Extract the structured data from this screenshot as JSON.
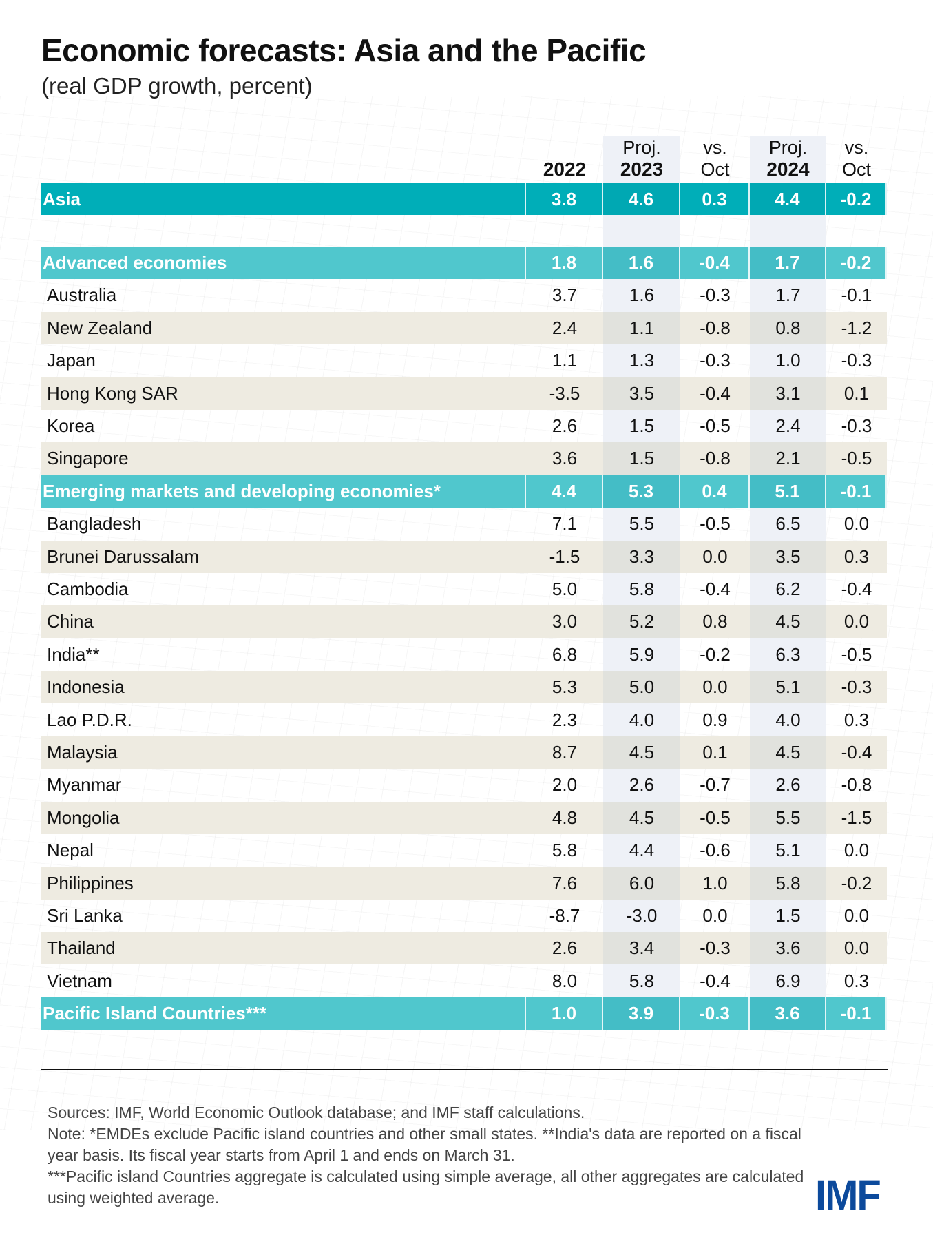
{
  "title": "Economic forecasts: Asia and the Pacific",
  "subtitle": "(real GDP growth, percent)",
  "columns": [
    {
      "top": "",
      "bottom": "2022"
    },
    {
      "top": "Proj.",
      "bottom": "2023"
    },
    {
      "top": "vs.",
      "bottom": "Oct"
    },
    {
      "top": "Proj.",
      "bottom": "2024"
    },
    {
      "top": "vs.",
      "bottom": "Oct"
    }
  ],
  "rows": [
    {
      "name": "Asia",
      "type": "asia",
      "values": [
        "3.8",
        "4.6",
        "0.3",
        "4.4",
        "-0.2"
      ]
    },
    {
      "name": "",
      "type": "blank",
      "values": [
        "",
        "",
        "",
        "",
        ""
      ]
    },
    {
      "name": "Advanced economies",
      "type": "adv",
      "values": [
        "1.8",
        "1.6",
        "-0.4",
        "1.7",
        "-0.2"
      ]
    },
    {
      "name": "Australia",
      "type": "white",
      "values": [
        "3.7",
        "1.6",
        "-0.3",
        "1.7",
        "-0.1"
      ]
    },
    {
      "name": "New Zealand",
      "type": "beige",
      "values": [
        "2.4",
        "1.1",
        "-0.8",
        "0.8",
        "-1.2"
      ]
    },
    {
      "name": "Japan",
      "type": "white",
      "values": [
        "1.1",
        "1.3",
        "-0.3",
        "1.0",
        "-0.3"
      ]
    },
    {
      "name": "Hong Kong SAR",
      "type": "beige",
      "values": [
        "-3.5",
        "3.5",
        "-0.4",
        "3.1",
        "0.1"
      ]
    },
    {
      "name": "Korea",
      "type": "white",
      "values": [
        "2.6",
        "1.5",
        "-0.5",
        "2.4",
        "-0.3"
      ]
    },
    {
      "name": "Singapore",
      "type": "beige",
      "values": [
        "3.6",
        "1.5",
        "-0.8",
        "2.1",
        "-0.5"
      ]
    },
    {
      "name": "Emerging markets and developing economies*",
      "type": "adv",
      "values": [
        "4.4",
        "5.3",
        "0.4",
        "5.1",
        "-0.1"
      ]
    },
    {
      "name": "Bangladesh",
      "type": "white",
      "values": [
        "7.1",
        "5.5",
        "-0.5",
        "6.5",
        "0.0"
      ]
    },
    {
      "name": "Brunei Darussalam",
      "type": "beige",
      "values": [
        "-1.5",
        "3.3",
        "0.0",
        "3.5",
        "0.3"
      ]
    },
    {
      "name": "Cambodia",
      "type": "white",
      "values": [
        "5.0",
        "5.8",
        "-0.4",
        "6.2",
        "-0.4"
      ]
    },
    {
      "name": "China",
      "type": "beige",
      "values": [
        "3.0",
        "5.2",
        "0.8",
        "4.5",
        "0.0"
      ]
    },
    {
      "name": "India**",
      "type": "white",
      "values": [
        "6.8",
        "5.9",
        "-0.2",
        "6.3",
        "-0.5"
      ]
    },
    {
      "name": "Indonesia",
      "type": "beige",
      "values": [
        "5.3",
        "5.0",
        "0.0",
        "5.1",
        "-0.3"
      ]
    },
    {
      "name": "Lao P.D.R.",
      "type": "white",
      "values": [
        "2.3",
        "4.0",
        "0.9",
        "4.0",
        "0.3"
      ]
    },
    {
      "name": "Malaysia",
      "type": "beige",
      "values": [
        "8.7",
        "4.5",
        "0.1",
        "4.5",
        "-0.4"
      ]
    },
    {
      "name": "Myanmar",
      "type": "white",
      "values": [
        "2.0",
        "2.6",
        "-0.7",
        "2.6",
        "-0.8"
      ]
    },
    {
      "name": "Mongolia",
      "type": "beige",
      "values": [
        "4.8",
        "4.5",
        "-0.5",
        "5.5",
        "-1.5"
      ]
    },
    {
      "name": "Nepal",
      "type": "white",
      "values": [
        "5.8",
        "4.4",
        "-0.6",
        "5.1",
        "0.0"
      ]
    },
    {
      "name": "Philippines",
      "type": "beige",
      "values": [
        "7.6",
        "6.0",
        "1.0",
        "5.8",
        "-0.2"
      ]
    },
    {
      "name": "Sri Lanka",
      "type": "white",
      "values": [
        "-8.7",
        "-3.0",
        "0.0",
        "1.5",
        "0.0"
      ]
    },
    {
      "name": "Thailand",
      "type": "beige",
      "values": [
        "2.6",
        "3.4",
        "-0.3",
        "3.6",
        "0.0"
      ]
    },
    {
      "name": "Vietnam",
      "type": "white",
      "values": [
        "8.0",
        "5.8",
        "-0.4",
        "6.9",
        "0.3"
      ]
    },
    {
      "name": "Pacific Island Countries***",
      "type": "adv",
      "values": [
        "1.0",
        "3.9",
        "-0.3",
        "3.6",
        "-0.1"
      ]
    }
  ],
  "footnotes": [
    "Sources: IMF, World Economic Outlook database; and IMF staff calculations.",
    "Note: *EMDEs exclude Pacific island countries and other small states. **India's data are reported on a fiscal year basis. Its fiscal year starts from April 1 and ends on March 31.",
    "***Pacific island Countries aggregate is calculated using simple average, all other aggregates are calculated using weighted average."
  ],
  "logo": "IMF",
  "colors": {
    "asia": "#00aeb8",
    "aggregate": "#50c7cd",
    "logo": "#0c4a9c"
  }
}
